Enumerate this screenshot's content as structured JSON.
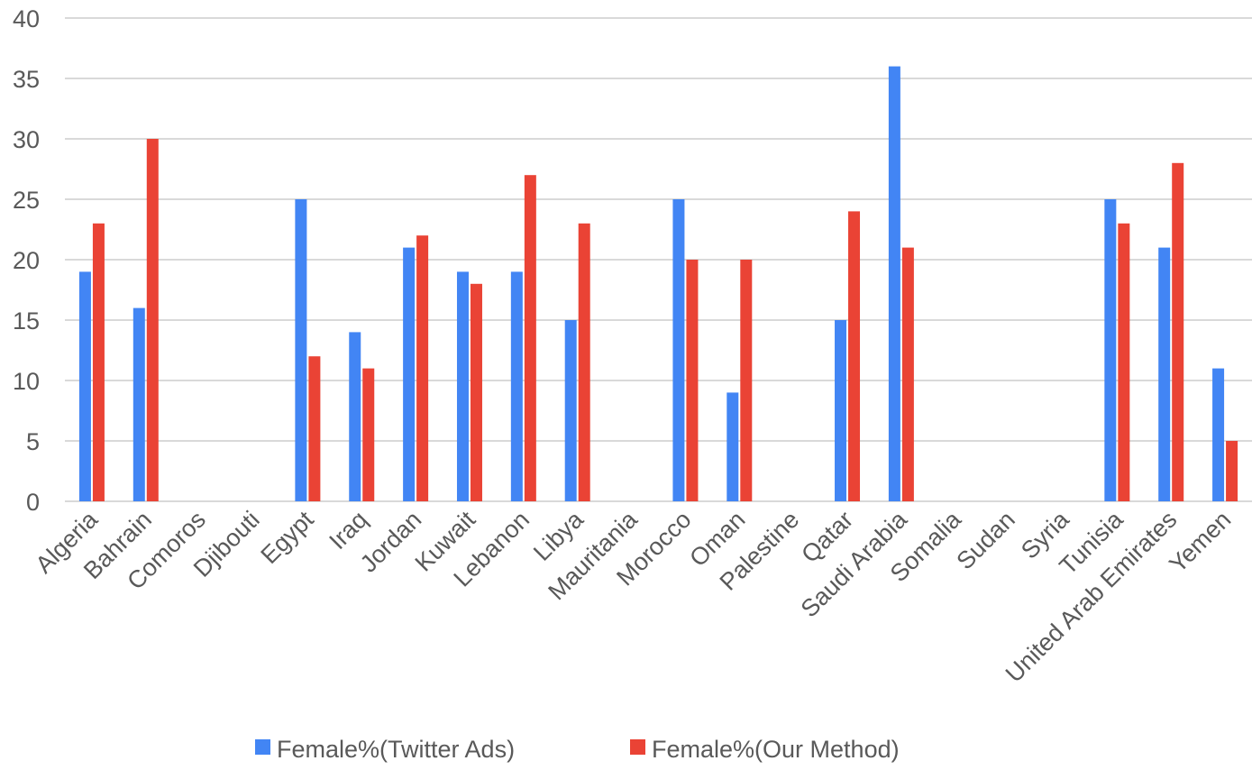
{
  "chart_data": {
    "type": "bar",
    "title": "",
    "xlabel": "",
    "ylabel": "",
    "ylim": [
      0,
      40
    ],
    "yticks": [
      0,
      5,
      10,
      15,
      20,
      25,
      30,
      35,
      40
    ],
    "grid": true,
    "legend_position": "bottom",
    "categories": [
      "Algeria",
      "Bahrain",
      "Comoros",
      "Djibouti",
      "Egypt",
      "Iraq",
      "Jordan",
      "Kuwait",
      "Lebanon",
      "Libya",
      "Mauritania",
      "Morocco",
      "Oman",
      "Palestine",
      "Qatar",
      "Saudi Arabia",
      "Somalia",
      "Sudan",
      "Syria",
      "Tunisia",
      "United Arab Emirates",
      "Yemen"
    ],
    "series": [
      {
        "name": "Female%(Twitter Ads)",
        "color": "#4285F4",
        "values": [
          19,
          16,
          null,
          null,
          25,
          14,
          21,
          19,
          19,
          15,
          null,
          25,
          9,
          null,
          15,
          36,
          null,
          null,
          null,
          25,
          21,
          11
        ]
      },
      {
        "name": "Female%(Our Method)",
        "color": "#EA4335",
        "values": [
          23,
          30,
          null,
          null,
          12,
          11,
          22,
          18,
          27,
          23,
          null,
          20,
          20,
          null,
          24,
          21,
          null,
          null,
          null,
          23,
          28,
          5
        ]
      }
    ]
  }
}
